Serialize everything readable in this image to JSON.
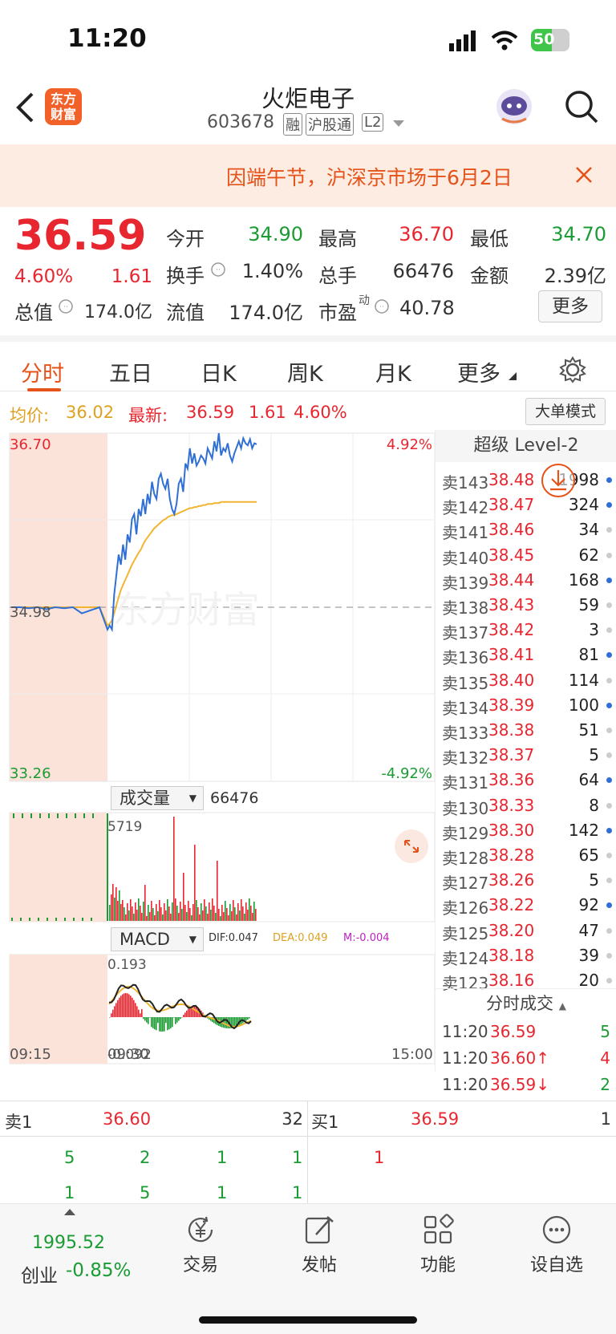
{
  "status": {
    "time": "11:20",
    "battery": "50"
  },
  "header": {
    "stock_name": "火炬电子",
    "code": "603678",
    "tags": [
      "融",
      "沪股通",
      "L2"
    ],
    "logo_text": "东方财富"
  },
  "banner": {
    "text": "因端午节，沪深京市场于6月2日"
  },
  "quote": {
    "price": "36.59",
    "pct": "4.60%",
    "change": "1.61",
    "open_label": "今开",
    "open": "34.90",
    "high_label": "最高",
    "high": "36.70",
    "low_label": "最低",
    "low": "34.70",
    "turnover_label": "换手",
    "turnover": "1.40%",
    "volume_label": "总手",
    "volume": "66476",
    "amount_label": "金额",
    "amount": "2.39亿",
    "mktcap_label": "总值",
    "mktcap": "174.0亿",
    "float_label": "流值",
    "float": "174.0亿",
    "pe_label": "市盈",
    "pe_sup": "动",
    "pe": "40.78",
    "more": "更多"
  },
  "tabs": [
    "分时",
    "五日",
    "日K",
    "周K",
    "月K",
    "更多"
  ],
  "infobar": {
    "avg_label": "均价:",
    "avg": "36.02",
    "latest_label": "最新:",
    "latest": "36.59",
    "chg": "1.61",
    "pct": "4.60%",
    "mode_btn": "大单模式"
  },
  "chart_data": {
    "type": "line",
    "y_top": "36.70",
    "y_mid": "34.98",
    "y_bottom": "33.26",
    "pct_top": "4.92%",
    "pct_bottom": "-4.92%",
    "ylim": [
      33.26,
      36.7
    ],
    "price": [
      34.98,
      34.98,
      34.97,
      34.98,
      34.96,
      34.98,
      34.97,
      34.98,
      34.92,
      34.95,
      34.98,
      34.76,
      34.8,
      34.76,
      35.1,
      35.3,
      35.5,
      35.4,
      35.6,
      35.45,
      35.7,
      35.62,
      35.85,
      35.9,
      35.7,
      35.95,
      35.88,
      36.05,
      35.9,
      36.1,
      36.0,
      36.22,
      36.1,
      36.05,
      36.25,
      36.3,
      36.2,
      36.15,
      36.25,
      36.05,
      35.95,
      35.9,
      36.0,
      36.2,
      36.25,
      36.12,
      36.4,
      36.35,
      36.55,
      36.4,
      36.5,
      36.38,
      36.42,
      36.48,
      36.45,
      36.4,
      36.55,
      36.5,
      36.45,
      36.62,
      36.52,
      36.7,
      36.48,
      36.55,
      36.52,
      36.6,
      36.48,
      36.42,
      36.5,
      36.56,
      36.62,
      36.55,
      36.65,
      36.6,
      36.58,
      36.64,
      36.55,
      36.6,
      36.59
    ],
    "avg": [
      34.98,
      34.98,
      34.98,
      34.98,
      34.98,
      34.98,
      34.98,
      34.98,
      34.98,
      34.98,
      34.98,
      34.8,
      34.82,
      34.85,
      34.92,
      35.0,
      35.08,
      35.15,
      35.2,
      35.25,
      35.3,
      35.35,
      35.4,
      35.44,
      35.48,
      35.52,
      35.55,
      35.6,
      35.64,
      35.67,
      35.7,
      35.73,
      35.76,
      35.78,
      35.8,
      35.82,
      35.84,
      35.85,
      35.87,
      35.88,
      35.89,
      35.89,
      35.9,
      35.91,
      35.92,
      35.93,
      35.94,
      35.95,
      35.96,
      35.96,
      35.97,
      35.97,
      35.98,
      35.98,
      35.99,
      35.99,
      36.0,
      36.0,
      36.0,
      36.01,
      36.01,
      36.01,
      36.02,
      36.02,
      36.02,
      36.02,
      36.02,
      36.02,
      36.02,
      36.02,
      36.02,
      36.02,
      36.02,
      36.02,
      36.02,
      36.02,
      36.02,
      36.02,
      36.02
    ],
    "x_labels": [
      "09:15",
      "09:30",
      "15:00"
    ]
  },
  "volume": {
    "label": "成交量",
    "total": "66476",
    "peak": "5719"
  },
  "macd": {
    "label": "MACD",
    "dif": "DIF:0.047",
    "dea": "DEA:0.049",
    "m": "M:-0.004",
    "top": "0.193",
    "bottom": "-0.092"
  },
  "level2": {
    "title": "超级 Level-2",
    "rows": [
      {
        "n": "卖143",
        "p": "38.48",
        "v": "1998",
        "dot": "#2f6fd6"
      },
      {
        "n": "卖142",
        "p": "38.47",
        "v": "324",
        "dot": "#2f6fd6"
      },
      {
        "n": "卖141",
        "p": "38.46",
        "v": "34",
        "dot": "#ccc"
      },
      {
        "n": "卖140",
        "p": "38.45",
        "v": "62",
        "dot": "#ccc"
      },
      {
        "n": "卖139",
        "p": "38.44",
        "v": "168",
        "dot": "#2f6fd6"
      },
      {
        "n": "卖138",
        "p": "38.43",
        "v": "59",
        "dot": "#ccc"
      },
      {
        "n": "卖137",
        "p": "38.42",
        "v": "3",
        "dot": "#ccc"
      },
      {
        "n": "卖136",
        "p": "38.41",
        "v": "81",
        "dot": "#2f6fd6"
      },
      {
        "n": "卖135",
        "p": "38.40",
        "v": "114",
        "dot": "#ccc"
      },
      {
        "n": "卖134",
        "p": "38.39",
        "v": "100",
        "dot": "#2f6fd6"
      },
      {
        "n": "卖133",
        "p": "38.38",
        "v": "51",
        "dot": "#ccc"
      },
      {
        "n": "卖132",
        "p": "38.37",
        "v": "5",
        "dot": "#ccc"
      },
      {
        "n": "卖131",
        "p": "38.36",
        "v": "64",
        "dot": "#2f6fd6"
      },
      {
        "n": "卖130",
        "p": "38.33",
        "v": "8",
        "dot": "#ccc"
      },
      {
        "n": "卖129",
        "p": "38.30",
        "v": "142",
        "dot": "#2f6fd6"
      },
      {
        "n": "卖128",
        "p": "38.28",
        "v": "65",
        "dot": "#ccc"
      },
      {
        "n": "卖127",
        "p": "38.26",
        "v": "5",
        "dot": "#ccc"
      },
      {
        "n": "卖126",
        "p": "38.22",
        "v": "92",
        "dot": "#2f6fd6"
      },
      {
        "n": "卖125",
        "p": "38.20",
        "v": "47",
        "dot": "#ccc"
      },
      {
        "n": "卖124",
        "p": "38.18",
        "v": "39",
        "dot": "#ccc"
      },
      {
        "n": "卖123",
        "p": "38.16",
        "v": "20",
        "dot": "#ccc"
      }
    ],
    "ticks_title": "分时成交",
    "ticks": [
      {
        "t": "11:20",
        "p": "36.59",
        "v": "5",
        "arrow": ""
      },
      {
        "t": "11:20",
        "p": "36.60↑",
        "v": "4",
        "arrow": "up"
      },
      {
        "t": "11:20",
        "p": "36.59↓",
        "v": "2",
        "arrow": "down"
      }
    ]
  },
  "book": {
    "sell1_label": "卖1",
    "sell1_price": "36.60",
    "sell1_vol": "32",
    "buy1_label": "买1",
    "buy1_price": "36.59",
    "buy1_vol": "1",
    "sell_row1": [
      "5",
      "2",
      "1",
      "1"
    ],
    "sell_row2": [
      "1",
      "5",
      "1",
      "1"
    ],
    "buy_row1": [
      "1"
    ]
  },
  "bottom": {
    "index_val": "1995.52",
    "index_name": "创业",
    "index_pct": "-0.85%",
    "items": [
      "交易",
      "发帖",
      "功能",
      "设自选"
    ]
  }
}
